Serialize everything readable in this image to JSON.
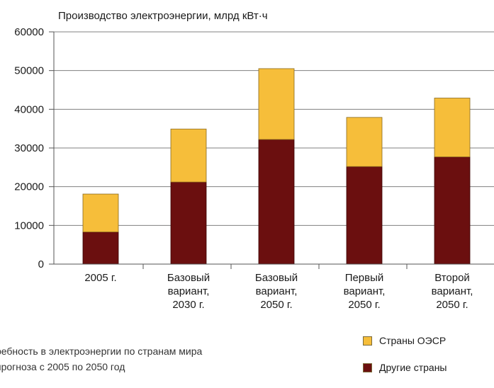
{
  "chart_data": {
    "type": "bar",
    "stacked": true,
    "title": "Производство электроэнергии, млрд кВт·ч",
    "categories": [
      [
        "2005 г."
      ],
      [
        "Базовый",
        "вариант,",
        "2030 г."
      ],
      [
        "Базовый",
        "вариант,",
        "2050 г."
      ],
      [
        "Первый",
        "вариант,",
        "2050 г."
      ],
      [
        "Второй",
        "вариант,",
        "2050 г."
      ]
    ],
    "series": [
      {
        "name": "Другие страны",
        "color": "#6b0f0f",
        "values": [
          8300,
          21200,
          32200,
          25200,
          27700
        ]
      },
      {
        "name": "Страны ОЭСР",
        "color": "#f6be3a",
        "values": [
          9800,
          13700,
          18300,
          12700,
          15200
        ]
      }
    ],
    "ylim": [
      0,
      60000
    ],
    "yticks": [
      0,
      10000,
      20000,
      30000,
      40000,
      50000,
      60000
    ],
    "grid": true,
    "legend_position": "bottom-right"
  },
  "legend": {
    "items": [
      {
        "label": "Страны ОЭСР",
        "color": "#f6be3a"
      },
      {
        "label": "Другие страны",
        "color": "#6b0f0f"
      }
    ]
  },
  "caption": {
    "line1": "ребность в электроэнергии по странам мира",
    "line2": "прогноза с 2005 по 2050 год"
  }
}
